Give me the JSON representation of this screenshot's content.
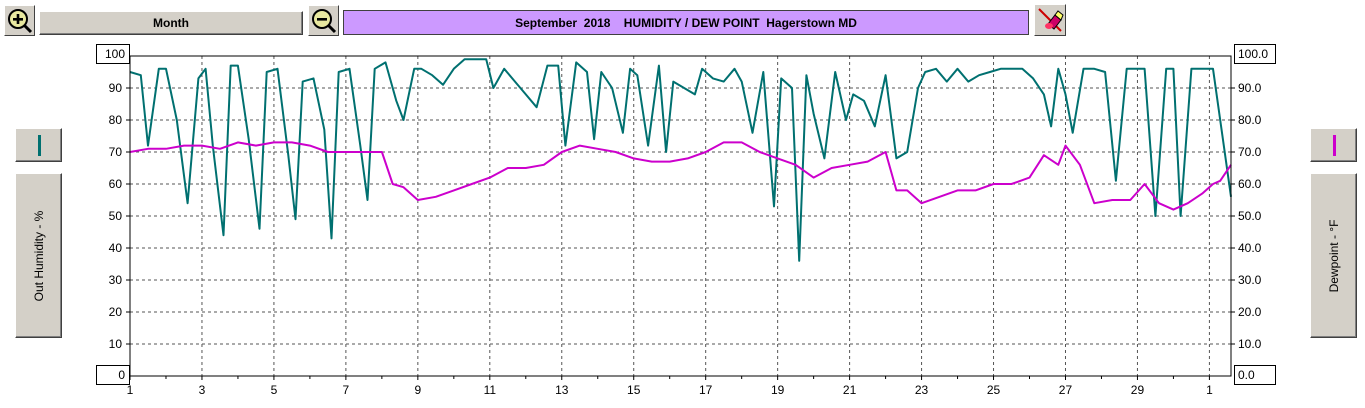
{
  "toolbar": {
    "period_label": "Month",
    "title": "September  2018    HUMIDITY / DEW POINT  Hagerstown MD",
    "zoom_in_icon": "magnifier-plus-icon",
    "zoom_out_icon": "magnifier-minus-icon",
    "clear_icon": "eraser-icon"
  },
  "chart_data": {
    "type": "line",
    "title": "September  2018    HUMIDITY / DEW POINT  Hagerstown MD",
    "xlabel": "",
    "x_ticks": [
      "1",
      "3",
      "5",
      "7",
      "9",
      "11",
      "13",
      "15",
      "17",
      "19",
      "21",
      "23",
      "25",
      "27",
      "29",
      "1"
    ],
    "x_range_days": [
      1,
      31.6
    ],
    "grid": true,
    "left_axis": {
      "label": "Out Humidity - %",
      "ylim": [
        0,
        100
      ],
      "top_label": "100",
      "bottom_label": "0",
      "ticks": [
        "90",
        "80",
        "70",
        "60",
        "50",
        "40",
        "30",
        "20",
        "10"
      ]
    },
    "right_axis": {
      "label": "Dewpoint - °F",
      "ylim": [
        0,
        100
      ],
      "top_label": "100.0",
      "bottom_label": "0.0",
      "ticks": [
        "90.0",
        "80.0",
        "70.0",
        "60.0",
        "50.0",
        "40.0",
        "30.0",
        "20.0",
        "10.0"
      ]
    },
    "series": [
      {
        "axis": "left",
        "color": "#007070",
        "x": [
          1.0,
          1.3,
          1.5,
          1.8,
          2.0,
          2.3,
          2.6,
          2.9,
          3.1,
          3.3,
          3.6,
          3.8,
          4.0,
          4.3,
          4.6,
          4.8,
          5.1,
          5.4,
          5.6,
          5.8,
          6.1,
          6.4,
          6.6,
          6.8,
          7.1,
          7.4,
          7.6,
          7.8,
          8.1,
          8.4,
          8.6,
          8.9,
          9.1,
          9.4,
          9.7,
          10.0,
          10.3,
          10.6,
          10.9,
          11.1,
          11.4,
          11.7,
          12.0,
          12.3,
          12.6,
          12.9,
          13.1,
          13.4,
          13.7,
          13.9,
          14.1,
          14.4,
          14.7,
          14.9,
          15.1,
          15.4,
          15.7,
          15.9,
          16.1,
          16.4,
          16.7,
          16.9,
          17.2,
          17.5,
          17.8,
          18.0,
          18.3,
          18.6,
          18.9,
          19.1,
          19.4,
          19.6,
          19.8,
          20.0,
          20.3,
          20.6,
          20.9,
          21.1,
          21.4,
          21.7,
          22.0,
          22.3,
          22.6,
          22.9,
          23.1,
          23.4,
          23.7,
          24.0,
          24.3,
          24.6,
          24.9,
          25.2,
          25.5,
          25.8,
          26.1,
          26.4,
          26.6,
          26.8,
          27.0,
          27.2,
          27.5,
          27.8,
          28.1,
          28.4,
          28.7,
          29.0,
          29.2,
          29.5,
          29.8,
          30.0,
          30.2,
          30.5,
          30.8,
          31.1,
          31.3,
          31.6
        ],
        "values": [
          95,
          94,
          72,
          96,
          96,
          80,
          54,
          93,
          96,
          72,
          44,
          97,
          97,
          74,
          46,
          95,
          96,
          69,
          49,
          92,
          93,
          77,
          43,
          95,
          96,
          72,
          55,
          96,
          98,
          86,
          80,
          96,
          96,
          94,
          91,
          96,
          99,
          99,
          99,
          90,
          96,
          92,
          88,
          84,
          97,
          97,
          72,
          98,
          95,
          74,
          95,
          90,
          76,
          96,
          94,
          72,
          97,
          70,
          92,
          90,
          88,
          96,
          93,
          92,
          96,
          92,
          76,
          95,
          53,
          93,
          90,
          36,
          94,
          82,
          68,
          95,
          80,
          88,
          86,
          78,
          94,
          68,
          70,
          90,
          95,
          96,
          92,
          96,
          92,
          94,
          95,
          96,
          96,
          96,
          93,
          88,
          78,
          96,
          88,
          76,
          96,
          96,
          95,
          61,
          96,
          96,
          96,
          50,
          96,
          96,
          50,
          96,
          96,
          96,
          80,
          56
        ]
      },
      {
        "axis": "right",
        "color": "#cc00cc",
        "x": [
          1.0,
          1.5,
          2.0,
          2.5,
          3.0,
          3.5,
          4.0,
          4.5,
          5.0,
          5.5,
          6.0,
          6.5,
          7.0,
          7.5,
          8.0,
          8.3,
          8.6,
          9.0,
          9.5,
          10.0,
          10.5,
          11.0,
          11.5,
          12.0,
          12.5,
          13.0,
          13.5,
          14.0,
          14.5,
          15.0,
          15.5,
          16.0,
          16.5,
          17.0,
          17.5,
          18.0,
          18.5,
          19.0,
          19.5,
          20.0,
          20.5,
          21.0,
          21.5,
          22.0,
          22.3,
          22.6,
          23.0,
          23.5,
          24.0,
          24.5,
          25.0,
          25.5,
          26.0,
          26.4,
          26.8,
          27.0,
          27.4,
          27.8,
          28.3,
          28.8,
          29.2,
          29.6,
          30.0,
          30.4,
          30.8,
          31.1,
          31.3,
          31.6
        ],
        "values": [
          70,
          71,
          71,
          72,
          72,
          71,
          73,
          72,
          73,
          73,
          72,
          70,
          70,
          70,
          70,
          60,
          59,
          55,
          56,
          58,
          60,
          62,
          65,
          65,
          66,
          70,
          72,
          71,
          70,
          68,
          67,
          67,
          68,
          70,
          73,
          73,
          70,
          68,
          66,
          62,
          65,
          66,
          67,
          70,
          58,
          58,
          54,
          56,
          58,
          58,
          60,
          60,
          62,
          69,
          66,
          72,
          66,
          54,
          55,
          55,
          60,
          54,
          52,
          54,
          57,
          60,
          61,
          66
        ]
      }
    ]
  }
}
